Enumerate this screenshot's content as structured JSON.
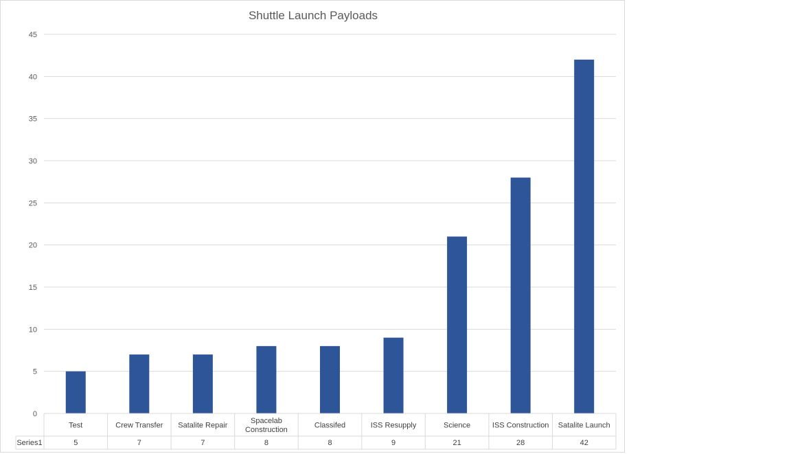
{
  "chart_data": {
    "type": "bar",
    "title": "Shuttle Launch Payloads",
    "categories": [
      "Test",
      "Crew Transfer",
      "Satalite Repair",
      "Spacelab Construction",
      "Classifed",
      "ISS Resupply",
      "Science",
      "ISS Construction",
      "Satalite Launch"
    ],
    "category_lines": [
      [
        "Test"
      ],
      [
        "Crew Transfer"
      ],
      [
        "Satalite Repair"
      ],
      [
        "Spacelab",
        "Construction"
      ],
      [
        "Classifed"
      ],
      [
        "ISS Resupply"
      ],
      [
        "Science"
      ],
      [
        "ISS Construction"
      ],
      [
        "Satalite Launch"
      ]
    ],
    "series": [
      {
        "name": "Series1",
        "values": [
          5,
          7,
          7,
          8,
          8,
          9,
          21,
          28,
          42
        ],
        "color": "#2e5597"
      }
    ],
    "ylim": [
      0,
      45
    ],
    "yticks": [
      0,
      5,
      10,
      15,
      20,
      25,
      30,
      35,
      40,
      45
    ],
    "grid": true,
    "data_table": true,
    "xlabel": "",
    "ylabel": ""
  }
}
